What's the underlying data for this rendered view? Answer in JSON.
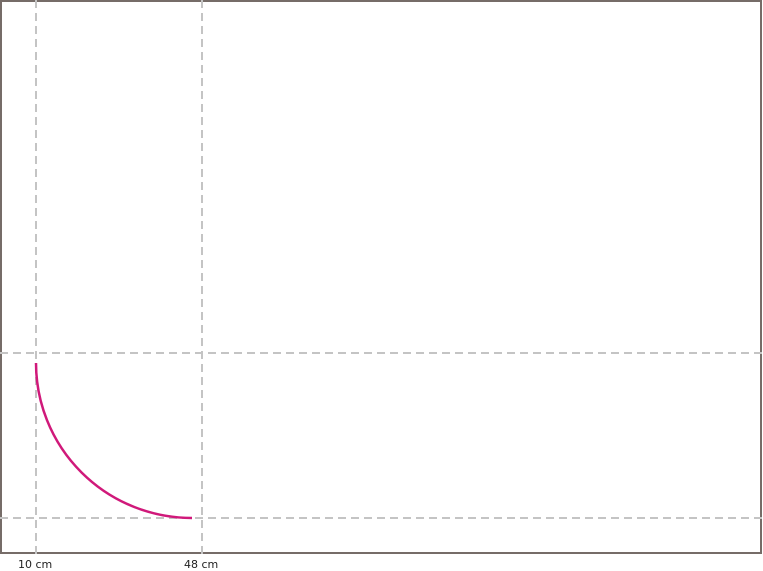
{
  "labels": [
    "10 cm",
    "48 cm"
  ]
}
